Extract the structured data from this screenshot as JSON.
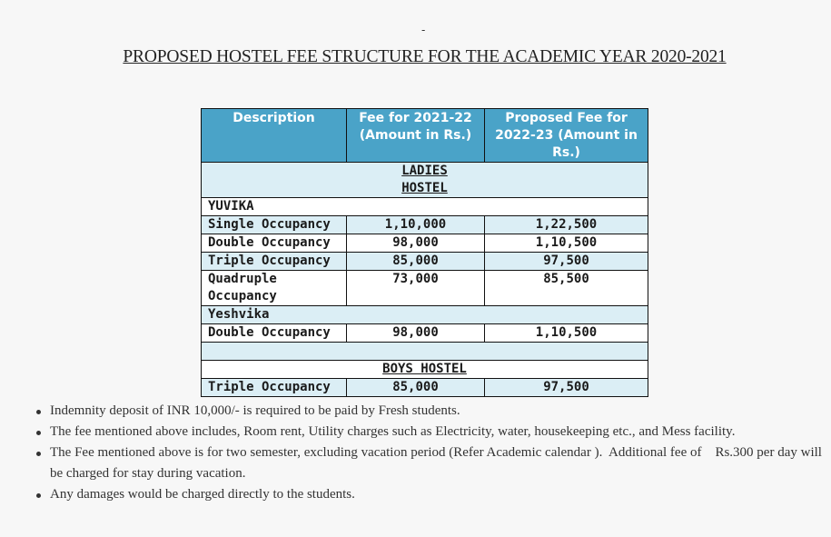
{
  "top_mark": "-",
  "title": "PROPOSED HOSTEL FEE STRUCTURE FOR THE ACADEMIC YEAR 2020-2021",
  "table": {
    "headers": [
      "Description",
      "Fee for 2021-22 (Amount in Rs.)",
      "Proposed Fee for 2022-23 (Amount in Rs.)"
    ],
    "ladies_hostel": "LADIES HOSTEL",
    "yuvika": "YUVIKA",
    "yuvika_rows": [
      {
        "desc": "Single Occupancy",
        "fee": "1,10,000",
        "proposed": "1,22,500"
      },
      {
        "desc": "Double Occupancy",
        "fee": "98,000",
        "proposed": "1,10,500"
      },
      {
        "desc": "Triple Occupancy",
        "fee": "85,000",
        "proposed": "97,500"
      },
      {
        "desc": "Quadruple Occupancy",
        "fee": "73,000",
        "proposed": "85,500"
      }
    ],
    "yeshvika": "Yeshvika",
    "yeshvika_row": {
      "desc": "Double Occupancy",
      "fee": "98,000",
      "proposed": "1,10,500"
    },
    "boys_hostel": "BOYS HOSTEL",
    "boys_row": {
      "desc": "Triple Occupancy",
      "fee": "85,000",
      "proposed": "97,500"
    }
  },
  "notes": [
    "Indemnity deposit of INR 10,000/- is required to be paid by Fresh students.",
    "The fee mentioned above includes, Room rent, Utility charges such as Electricity, water, housekeeping etc., and Mess facility.",
    "The Fee mentioned above is for two semester, excluding vacation period (Refer Academic calendar ).  Additional fee of    Rs.300 per day will be charged for stay during vacation.",
    "Any damages would be charged directly to the students."
  ]
}
